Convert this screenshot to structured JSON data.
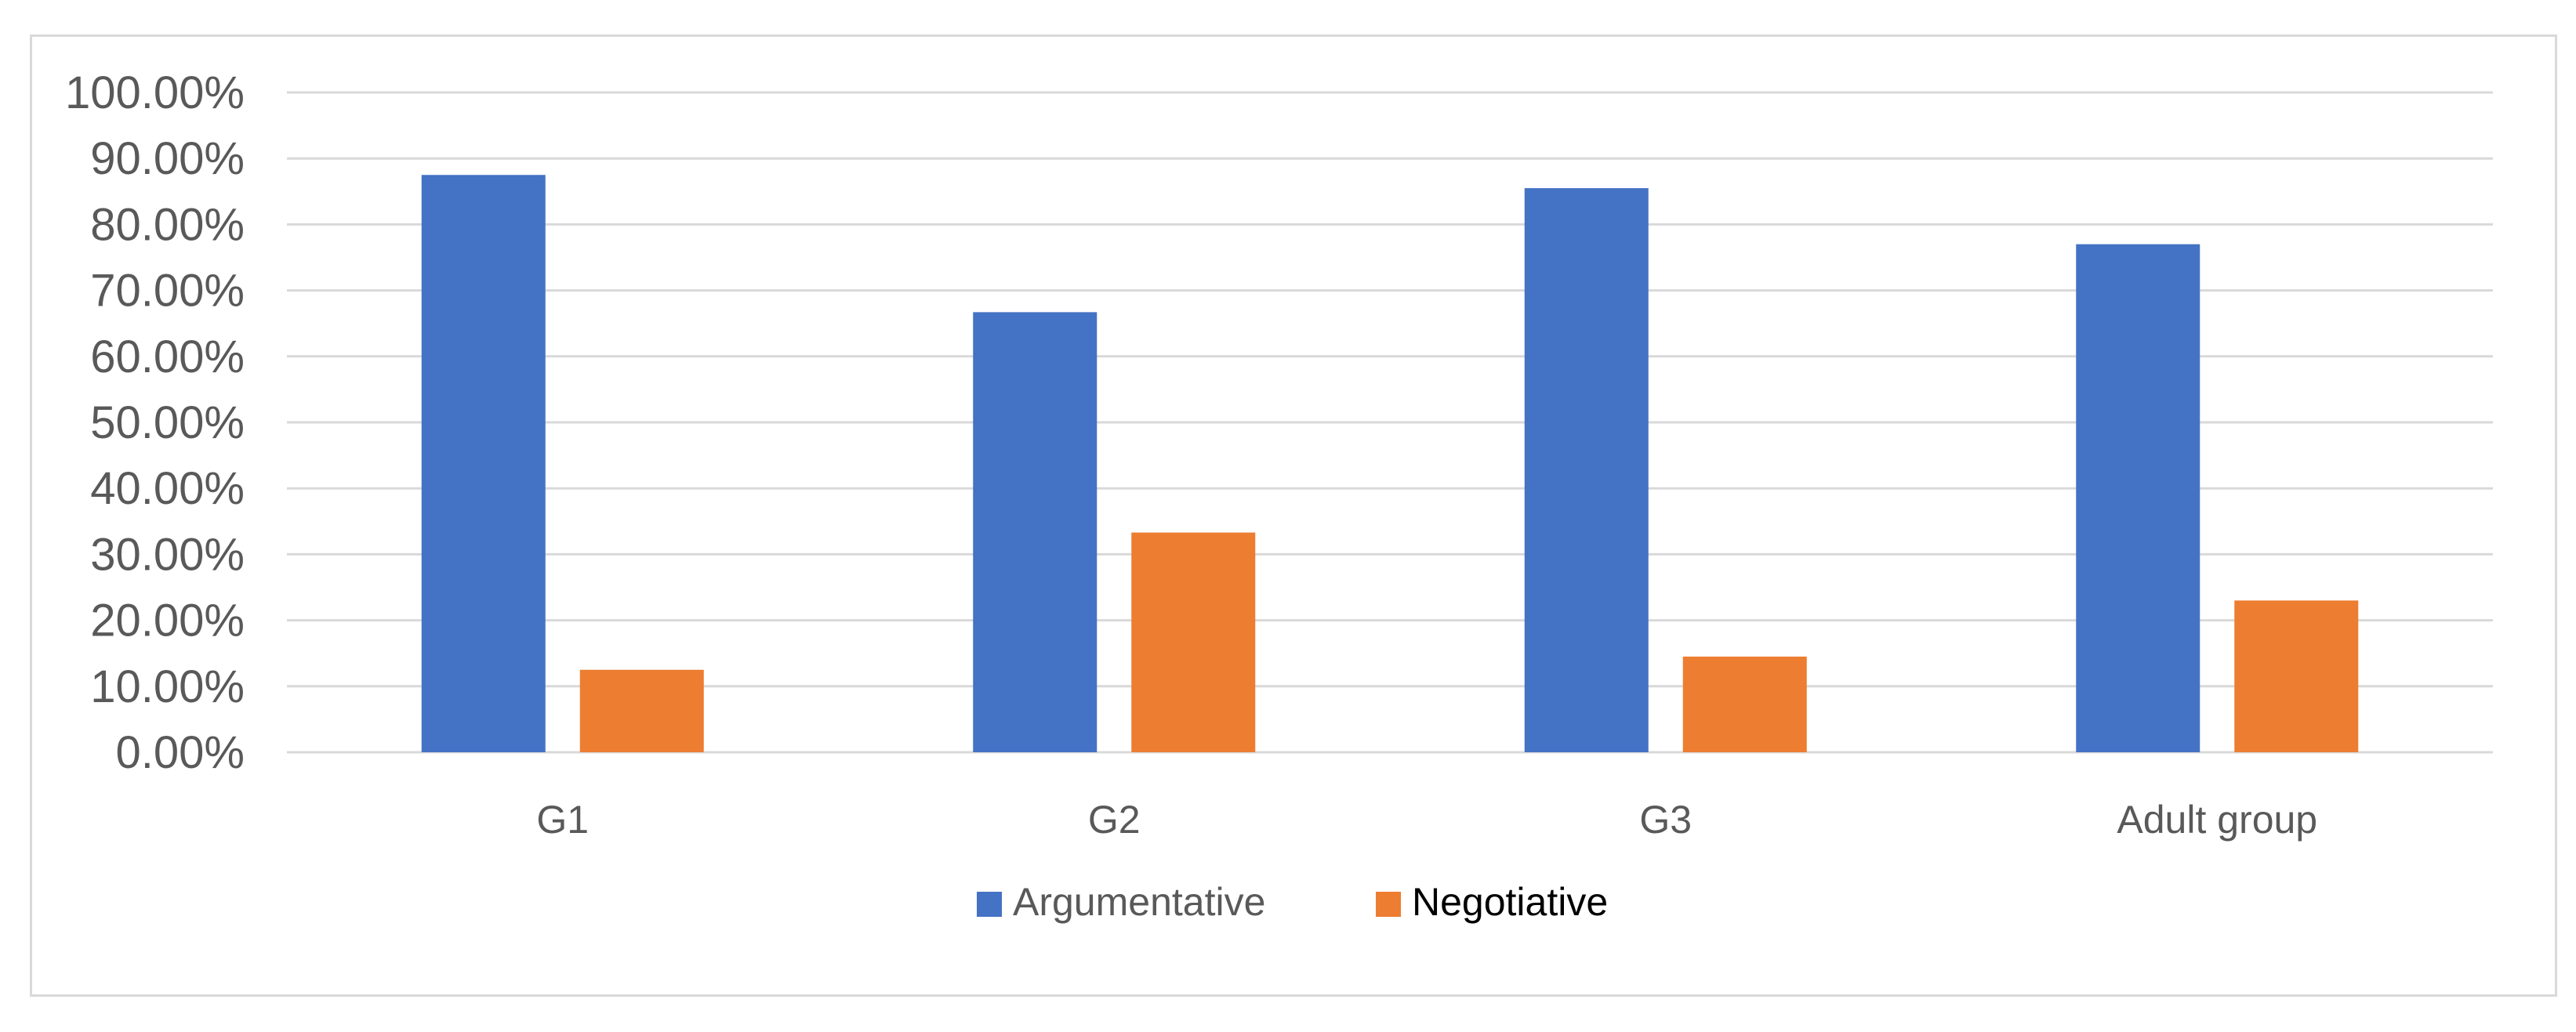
{
  "chart_data": {
    "type": "bar",
    "title": "",
    "xlabel": "",
    "ylabel": "",
    "categories": [
      "G1",
      "G2",
      "G3",
      "Adult group"
    ],
    "series": [
      {
        "name": "Argumentative",
        "color": "#4472c4",
        "values": [
          87.5,
          66.7,
          85.5,
          77.0
        ]
      },
      {
        "name": "Negotiative",
        "color": "#ed7d31",
        "values": [
          12.5,
          33.3,
          14.5,
          23.0
        ]
      }
    ],
    "ylim": [
      0,
      100
    ],
    "y_ticks": [
      0,
      10,
      20,
      30,
      40,
      50,
      60,
      70,
      80,
      90,
      100
    ],
    "y_tick_labels": [
      "0.00%",
      "10.00%",
      "20.00%",
      "30.00%",
      "40.00%",
      "50.00%",
      "60.00%",
      "70.00%",
      "80.00%",
      "90.00%",
      "100.00%"
    ],
    "grid": true,
    "gridline_color": "#d9d9d9",
    "legend_text_colors": [
      "#595959",
      "#000000"
    ],
    "legend_position": "bottom"
  }
}
